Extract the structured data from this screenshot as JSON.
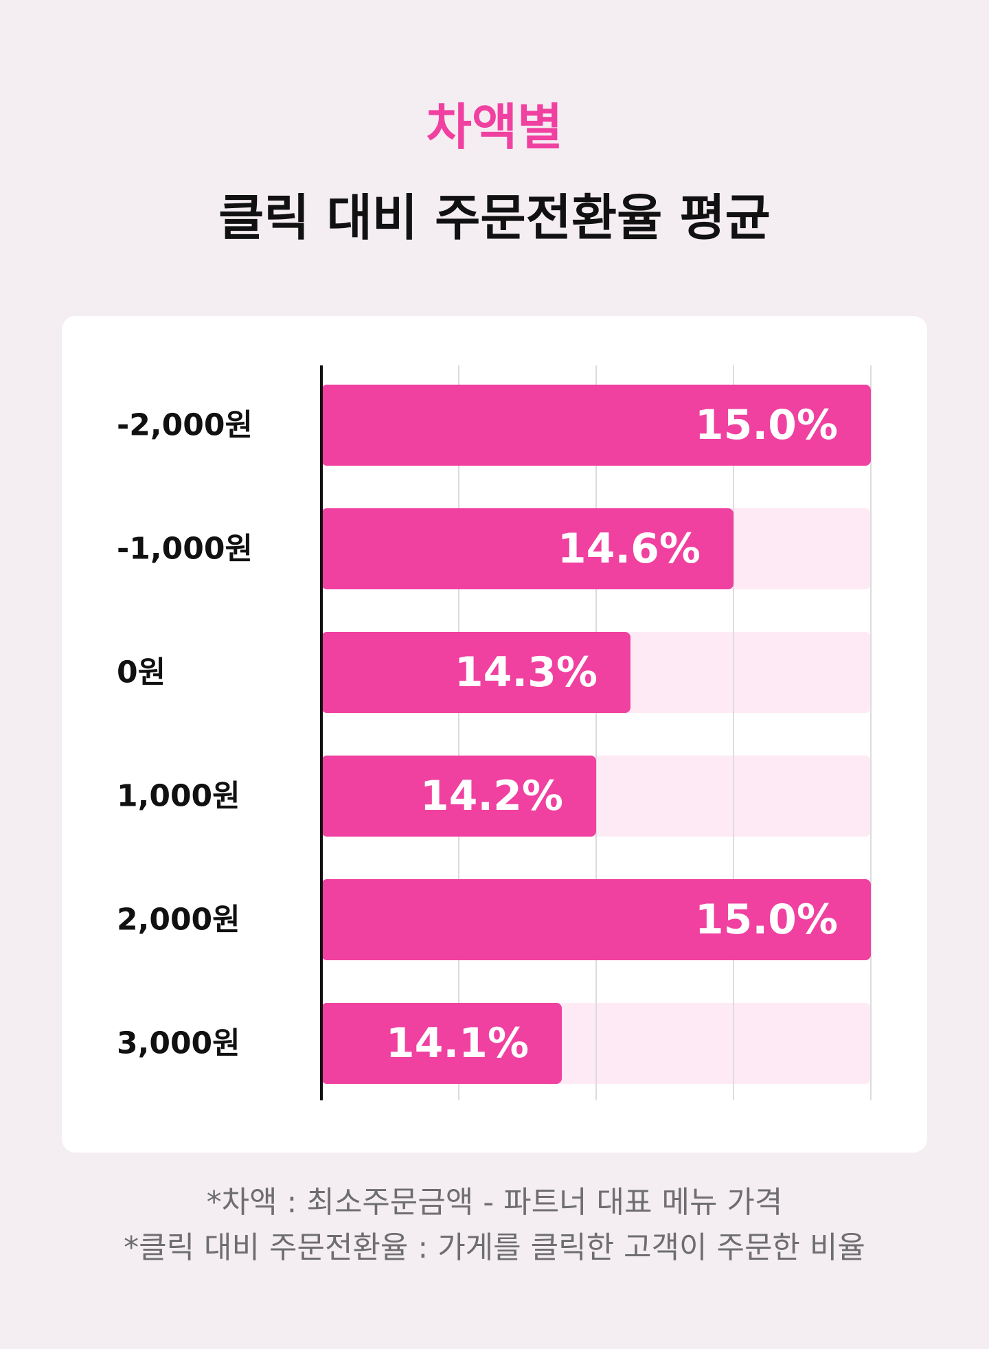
{
  "header": {
    "accent": "차액별",
    "title": "클릭 대비 주문전환율 평균"
  },
  "chart_data": {
    "type": "bar",
    "orientation": "horizontal",
    "title": "클릭 대비 주문전환율 평균",
    "categories": [
      "-2,000원",
      "-1,000원",
      "0원",
      "1,000원",
      "2,000원",
      "3,000원"
    ],
    "values": [
      15.0,
      14.6,
      14.3,
      14.2,
      15.0,
      14.1
    ],
    "value_labels": [
      "15.0%",
      "14.6%",
      "14.3%",
      "14.2%",
      "15.0%",
      "14.1%"
    ],
    "xlim": [
      13.4,
      15.0
    ],
    "gridlines": [
      13.8,
      14.2,
      14.6,
      15.0
    ],
    "grid": true,
    "colors": {
      "bar": "#f040a0",
      "track": "#feeaf5",
      "grid": "#dcdcdc",
      "axis": "#111111",
      "value_text": "#ffffff",
      "category_text": "#111111"
    }
  },
  "footnotes": [
    "*차액 : 최소주문금액 - 파트너 대표 메뉴 가격",
    "*클릭 대비 주문전환율 : 가게를 클릭한 고객이 주문한 비율"
  ]
}
